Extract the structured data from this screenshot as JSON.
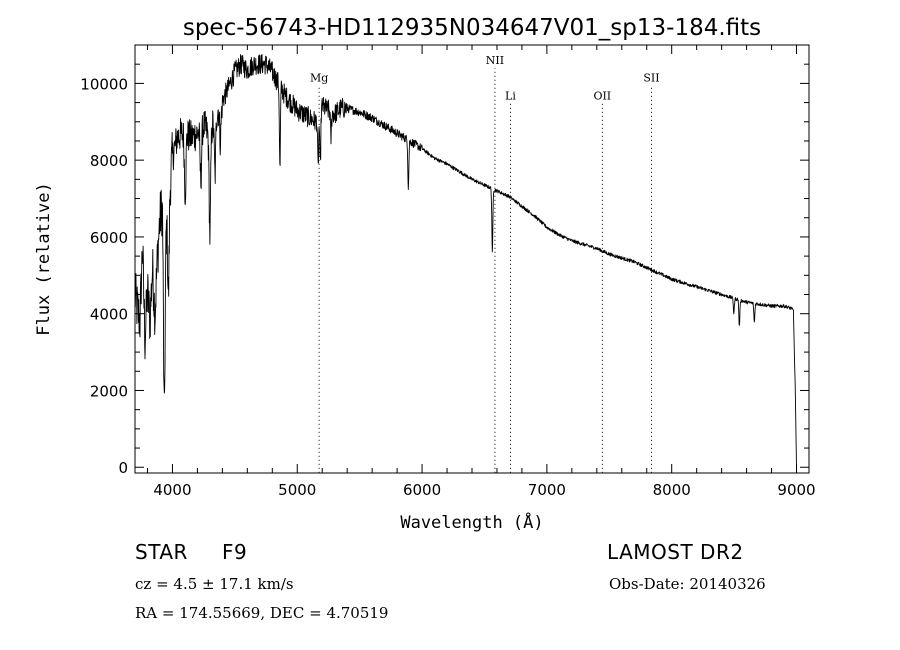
{
  "chart_data": {
    "type": "line",
    "title": "spec-56743-HD112935N034647V01_sp13-184.fits",
    "xlabel": "Wavelength (Å)",
    "ylabel": "Flux (relative)",
    "xlim": [
      3700,
      9100
    ],
    "ylim": [
      -150,
      11000
    ],
    "x_ticks": [
      4000,
      5000,
      6000,
      7000,
      8000,
      9000
    ],
    "y_ticks": [
      0,
      2000,
      4000,
      6000,
      8000,
      10000
    ],
    "grid": false,
    "series": [
      {
        "name": "flux",
        "anchors_x": [
          3700,
          3715,
          3740,
          3760,
          3780,
          3800,
          3820,
          3840,
          3860,
          3880,
          3900,
          3920,
          3935,
          3950,
          3970,
          3990,
          4000,
          4040,
          4080,
          4150,
          4200,
          4250,
          4300,
          4340,
          4380,
          4450,
          4500,
          4550,
          4600,
          4650,
          4700,
          4750,
          4800,
          4850,
          4900,
          4950,
          5000,
          5050,
          5100,
          5150,
          5200,
          5250,
          5300,
          5350,
          5400,
          5500,
          5600,
          5700,
          5800,
          5900,
          6000,
          6100,
          6200,
          6300,
          6400,
          6500,
          6600,
          6700,
          6800,
          6900,
          7000,
          7100,
          7200,
          7300,
          7400,
          7500,
          7600,
          7700,
          7800,
          7900,
          8000,
          8100,
          8200,
          8300,
          8400,
          8500,
          8600,
          8700,
          8800,
          8900,
          8950,
          8975,
          8990,
          9000
        ],
        "anchors_y": [
          4500,
          4200,
          3800,
          5800,
          3300,
          4600,
          3800,
          5200,
          4000,
          5500,
          6500,
          6800,
          4000,
          6200,
          6800,
          7800,
          8100,
          8600,
          8700,
          8600,
          8700,
          8900,
          8600,
          9200,
          9400,
          9900,
          10300,
          10500,
          10350,
          10500,
          10500,
          10500,
          10300,
          10000,
          9700,
          9500,
          9300,
          9200,
          9100,
          9000,
          9400,
          9300,
          9200,
          9350,
          9350,
          9250,
          9100,
          8900,
          8700,
          8500,
          8300,
          8050,
          7900,
          7700,
          7500,
          7350,
          7200,
          7050,
          6800,
          6550,
          6250,
          6050,
          5900,
          5800,
          5700,
          5550,
          5450,
          5350,
          5200,
          5050,
          4900,
          4800,
          4700,
          4600,
          4500,
          4400,
          4300,
          4250,
          4200,
          4200,
          4150,
          4100,
          2000,
          0
        ],
        "absorption_lines_x": [
          3934,
          3968,
          4102,
          4227,
          4300,
          4341,
          4384,
          4861,
          5167,
          5184,
          5270,
          5890,
          6563,
          8498,
          8542,
          8662
        ],
        "absorption_lines_depth": [
          2800,
          2200,
          1500,
          1300,
          2600,
          1600,
          900,
          2200,
          1400,
          1500,
          700,
          1200,
          1700,
          400,
          700,
          500
        ]
      }
    ],
    "line_markers": [
      {
        "label": "Mg",
        "x": 5175,
        "label_y": 10050
      },
      {
        "label": "NII",
        "x": 6584,
        "label_y": 10500
      },
      {
        "label": "Li",
        "x": 6708,
        "label_y": 9580
      },
      {
        "label": "OII",
        "x": 7444,
        "label_y": 9580
      },
      {
        "label": "SII",
        "x": 7838,
        "label_y": 10050
      }
    ]
  },
  "info": {
    "object_class": "STAR",
    "subclass": "F9",
    "survey": "LAMOST DR2",
    "cz": "cz = 4.5 ± 17.1 km/s",
    "obs_date": "Obs-Date: 20140326",
    "radec": "RA = 174.55669, DEC =   4.70519"
  }
}
